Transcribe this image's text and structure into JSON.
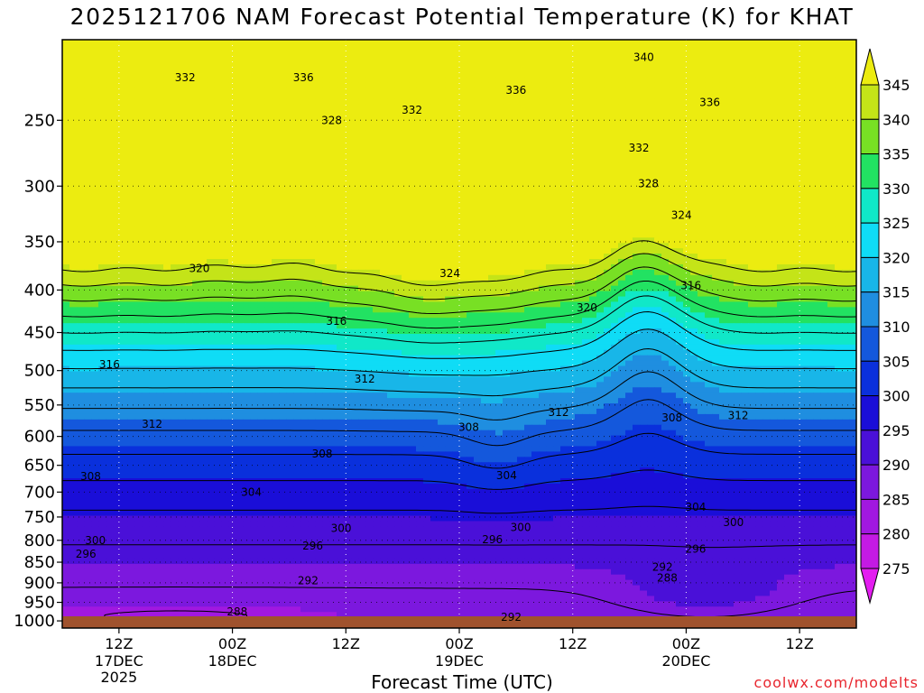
{
  "chart_data": {
    "type": "heatmap",
    "title": "2025121706 NAM Forecast Potential Temperature (K) for KHAT",
    "xlabel": "Forecast Time (UTC)",
    "ylabel": "",
    "credit": "coolwx.com/modelts",
    "variable": "Potential Temperature (K)",
    "y_axis": {
      "scale": "log-pressure",
      "ylim_hpa": [
        1020,
        200
      ],
      "ticks": [
        1000,
        950,
        900,
        850,
        800,
        750,
        700,
        650,
        600,
        550,
        500,
        450,
        400,
        350,
        300,
        250
      ]
    },
    "x_axis": {
      "xlim_hours": [
        0,
        84
      ],
      "ticks": [
        {
          "hour": 6,
          "label": "12Z",
          "sub1": "17DEC",
          "sub2": "2025"
        },
        {
          "hour": 18,
          "label": "00Z",
          "sub1": "18DEC",
          "sub2": ""
        },
        {
          "hour": 30,
          "label": "12Z",
          "sub1": "",
          "sub2": ""
        },
        {
          "hour": 42,
          "label": "00Z",
          "sub1": "19DEC",
          "sub2": ""
        },
        {
          "hour": 54,
          "label": "12Z",
          "sub1": "",
          "sub2": ""
        },
        {
          "hour": 66,
          "label": "00Z",
          "sub1": "20DEC",
          "sub2": ""
        },
        {
          "hour": 78,
          "label": "12Z",
          "sub1": "",
          "sub2": ""
        }
      ]
    },
    "grid": true,
    "colorbar": {
      "placement": "right",
      "levels": [
        275,
        280,
        285,
        290,
        295,
        300,
        305,
        310,
        315,
        320,
        325,
        330,
        335,
        340,
        345
      ],
      "colors": [
        "#e31df0",
        "#c41ae4",
        "#a118e0",
        "#7c18de",
        "#4a10d8",
        "#1a0ed8",
        "#0a30dc",
        "#1458dc",
        "#1f8ee0",
        "#18b6e8",
        "#0fdcf6",
        "#10e8c8",
        "#22e262",
        "#78e024",
        "#c4e418",
        "#ecec10"
      ]
    },
    "contour_interval_k": 4,
    "contour_labels": [
      {
        "value": 340,
        "hour": 61.5,
        "p": 210
      },
      {
        "value": 336,
        "hour": 25.5,
        "p": 222
      },
      {
        "value": 336,
        "hour": 48,
        "p": 230
      },
      {
        "value": 336,
        "hour": 68.5,
        "p": 238
      },
      {
        "value": 332,
        "hour": 13,
        "p": 222
      },
      {
        "value": 332,
        "hour": 37,
        "p": 243
      },
      {
        "value": 332,
        "hour": 61,
        "p": 270
      },
      {
        "value": 328,
        "hour": 28.5,
        "p": 250
      },
      {
        "value": 328,
        "hour": 62,
        "p": 298
      },
      {
        "value": 324,
        "hour": 65.5,
        "p": 325
      },
      {
        "value": 324,
        "hour": 41,
        "p": 382
      },
      {
        "value": 320,
        "hour": 14.5,
        "p": 377
      },
      {
        "value": 320,
        "hour": 55.5,
        "p": 420
      },
      {
        "value": 316,
        "hour": 66.5,
        "p": 395
      },
      {
        "value": 316,
        "hour": 29,
        "p": 436
      },
      {
        "value": 316,
        "hour": 5,
        "p": 492
      },
      {
        "value": 312,
        "hour": 32,
        "p": 512
      },
      {
        "value": 312,
        "hour": 9.5,
        "p": 580
      },
      {
        "value": 312,
        "hour": 52.5,
        "p": 561
      },
      {
        "value": 312,
        "hour": 71.5,
        "p": 566
      },
      {
        "value": 308,
        "hour": 64.5,
        "p": 570
      },
      {
        "value": 308,
        "hour": 43,
        "p": 585
      },
      {
        "value": 308,
        "hour": 27.5,
        "p": 630
      },
      {
        "value": 308,
        "hour": 3,
        "p": 670
      },
      {
        "value": 304,
        "hour": 47,
        "p": 669
      },
      {
        "value": 304,
        "hour": 20,
        "p": 700
      },
      {
        "value": 304,
        "hour": 67,
        "p": 730
      },
      {
        "value": 300,
        "hour": 3.5,
        "p": 800
      },
      {
        "value": 300,
        "hour": 29.5,
        "p": 774
      },
      {
        "value": 300,
        "hour": 48.5,
        "p": 772
      },
      {
        "value": 300,
        "hour": 71,
        "p": 761
      },
      {
        "value": 296,
        "hour": 2.5,
        "p": 831
      },
      {
        "value": 296,
        "hour": 45.5,
        "p": 798
      },
      {
        "value": 296,
        "hour": 67,
        "p": 820
      },
      {
        "value": 296,
        "hour": 26.5,
        "p": 813
      },
      {
        "value": 292,
        "hour": 26,
        "p": 895
      },
      {
        "value": 292,
        "hour": 63.5,
        "p": 862
      },
      {
        "value": 292,
        "hour": 47.5,
        "p": 990
      },
      {
        "value": 288,
        "hour": 18.5,
        "p": 975
      },
      {
        "value": 288,
        "hour": 64,
        "p": 888
      }
    ]
  }
}
